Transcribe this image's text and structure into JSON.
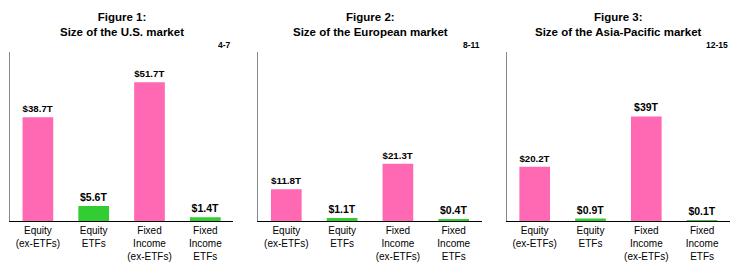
{
  "chart_data": [
    {
      "type": "bar",
      "title": "Figure 1:\nSize of the U.S. market",
      "annotations": [
        "4-7"
      ],
      "categories": [
        "Equity\n(ex-ETFs)",
        "Equity\nETFs",
        "Fixed\nIncome\n(ex-ETFs)",
        "Fixed\nIncome\nETFs"
      ],
      "values": [
        38.7,
        5.6,
        51.7,
        1.4
      ],
      "value_labels": [
        "$38.7T",
        "$5.6T",
        "$51.7T",
        "$1.4T"
      ],
      "colors": [
        "#ff69b4",
        "#32cd32",
        "#ff69b4",
        "#32cd32"
      ],
      "ylim": [
        0,
        63.0
      ],
      "yticks": [],
      "tick_labels": "x",
      "data_labels": true,
      "grid": false
    },
    {
      "type": "bar",
      "title": "Figure 2:\nSize of the European market",
      "annotations": [
        "8-11"
      ],
      "categories": [
        "Equity\n(ex-ETFs)",
        "Equity\nETFs",
        "Fixed\nIncome\n(ex-ETFs)",
        "Fixed\nIncome\nETFs"
      ],
      "values": [
        11.8,
        1.1,
        21.3,
        0.4
      ],
      "value_labels": [
        "$11.8T",
        "$1.1T",
        "$21.3T",
        "$0.4T"
      ],
      "colors": [
        "#ff69b4",
        "#32cd32",
        "#ff69b4",
        "#32cd32"
      ],
      "ylim": [
        0,
        63.0
      ],
      "yticks": [],
      "tick_labels": "x",
      "data_labels": true,
      "grid": false
    },
    {
      "type": "bar",
      "title": "Figure 3:\nSize of the Asia-Pacific market",
      "annotations": [
        "12-15"
      ],
      "categories": [
        "Equity\n(ex-ETFs)",
        "Equity\nETFs",
        "Fixed\nIncome\n(ex-ETFs)",
        "Fixed\nIncome\nETFs"
      ],
      "values": [
        20.2,
        0.9,
        39.0,
        0.1
      ],
      "value_labels": [
        "$20.2T",
        "$0.9T",
        "$39T",
        "$0.1T"
      ],
      "colors": [
        "#ff69b4",
        "#32cd32",
        "#ff69b4",
        "#32cd32"
      ],
      "ylim": [
        0,
        63.0
      ],
      "yticks": [],
      "tick_labels": "x",
      "data_labels": true,
      "grid": false
    }
  ]
}
